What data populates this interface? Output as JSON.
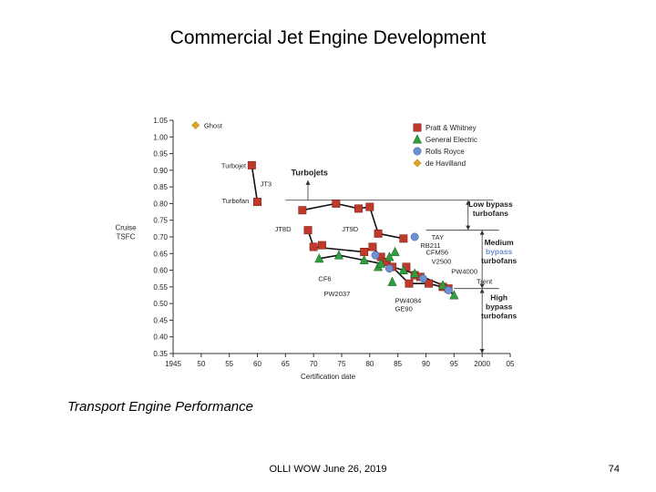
{
  "slide": {
    "title": "Commercial Jet Engine Development",
    "caption": "Transport Engine Performance",
    "footer": "OLLI WOW June 26, 2019",
    "page_number": "74"
  },
  "colors": {
    "pratt_whitney": "#c0392b",
    "general_electric": "#2e9e3f",
    "rolls_royce": "#6f8fd0",
    "de_havilland": "#e0a526"
  },
  "chart_data": {
    "type": "scatter",
    "xlabel": "Certification date",
    "ylabel": [
      "Cruise",
      "TSFC"
    ],
    "xlim": [
      1945,
      2005
    ],
    "ylim": [
      0.35,
      1.05
    ],
    "xticks": [
      1945,
      1950,
      1955,
      1960,
      1965,
      1970,
      1975,
      1980,
      1985,
      1990,
      1995,
      2000,
      2005
    ],
    "xtick_labels": [
      "1945",
      "50",
      "55",
      "60",
      "65",
      "70",
      "75",
      "80",
      "85",
      "90",
      "95",
      "2000",
      "05"
    ],
    "yticks": [
      0.35,
      0.4,
      0.45,
      0.5,
      0.55,
      0.6,
      0.65,
      0.7,
      0.75,
      0.8,
      0.85,
      0.9,
      0.95,
      1.0,
      1.05
    ],
    "ytick_labels": [
      "0.35",
      "0.40",
      "0.45",
      "0.50",
      "0.55",
      "0.60",
      "0.65",
      "0.70",
      "0.75",
      "0.80",
      "0.85",
      "0.90",
      "0.95",
      "1.00",
      "1.05"
    ],
    "legend_position": "top-right",
    "series": [
      {
        "name": "Pratt & Whitney",
        "marker": "square",
        "color": "#c0392b",
        "points": [
          [
            1959,
            0.915
          ],
          [
            1960,
            0.805
          ],
          [
            1968,
            0.78
          ],
          [
            1969,
            0.72
          ],
          [
            1970,
            0.67
          ],
          [
            1971.5,
            0.675
          ],
          [
            1974,
            0.8
          ],
          [
            1978,
            0.785
          ],
          [
            1979,
            0.655
          ],
          [
            1980,
            0.79
          ],
          [
            1980.5,
            0.67
          ],
          [
            1981.5,
            0.71
          ],
          [
            1982,
            0.64
          ],
          [
            1983,
            0.625
          ],
          [
            1984,
            0.61
          ],
          [
            1986,
            0.695
          ],
          [
            1986.5,
            0.61
          ],
          [
            1987,
            0.56
          ],
          [
            1988,
            0.585
          ],
          [
            1989,
            0.58
          ],
          [
            1990.5,
            0.56
          ],
          [
            1993,
            0.55
          ],
          [
            1994,
            0.545
          ]
        ],
        "connected_groups": [
          [
            [
              1959,
              0.915
            ],
            [
              1960,
              0.805
            ]
          ],
          [
            [
              1968,
              0.78
            ],
            [
              1974,
              0.8
            ],
            [
              1978,
              0.785
            ],
            [
              1980,
              0.79
            ],
            [
              1981.5,
              0.71
            ],
            [
              1986,
              0.695
            ]
          ],
          [
            [
              1969,
              0.72
            ],
            [
              1970,
              0.67
            ],
            [
              1979,
              0.655
            ],
            [
              1980.5,
              0.67
            ],
            [
              1982,
              0.64
            ],
            [
              1984,
              0.61
            ],
            [
              1987,
              0.56
            ],
            [
              1990.5,
              0.56
            ],
            [
              1994,
              0.545
            ]
          ]
        ]
      },
      {
        "name": "General Electric",
        "marker": "triangle",
        "color": "#2e9e3f",
        "points": [
          [
            1971,
            0.635
          ],
          [
            1974.5,
            0.645
          ],
          [
            1979,
            0.63
          ],
          [
            1981.5,
            0.61
          ],
          [
            1982,
            0.62
          ],
          [
            1983.5,
            0.64
          ],
          [
            1984,
            0.565
          ],
          [
            1984.5,
            0.655
          ],
          [
            1986,
            0.6
          ],
          [
            1988,
            0.59
          ],
          [
            1993,
            0.555
          ],
          [
            1995,
            0.525
          ]
        ],
        "connected_groups": [
          [
            [
              1971,
              0.635
            ],
            [
              1974.5,
              0.645
            ],
            [
              1979,
              0.63
            ],
            [
              1982,
              0.62
            ],
            [
              1986,
              0.6
            ],
            [
              1988,
              0.59
            ],
            [
              1993,
              0.555
            ],
            [
              1995,
              0.525
            ]
          ]
        ]
      },
      {
        "name": "Rolls Royce",
        "marker": "circle",
        "color": "#6f8fd0",
        "points": [
          [
            1981,
            0.645
          ],
          [
            1983.5,
            0.605
          ],
          [
            1988,
            0.7
          ],
          [
            1989.5,
            0.575
          ],
          [
            1994,
            0.54
          ]
        ],
        "connected_groups": []
      },
      {
        "name": "de Havilland",
        "marker": "diamond",
        "color": "#e0a526",
        "points": [
          [
            1949,
            1.035
          ]
        ],
        "connected_groups": []
      }
    ],
    "point_labels": [
      {
        "text": "Ghost",
        "x": 1950.5,
        "y": 1.035,
        "anchor": "start"
      },
      {
        "text": "Turbojet",
        "x": 1958,
        "y": 0.915,
        "anchor": "end"
      },
      {
        "text": "JT3",
        "x": 1960.5,
        "y": 0.86,
        "anchor": "start"
      },
      {
        "text": "Turbofan",
        "x": 1958.5,
        "y": 0.81,
        "anchor": "end"
      },
      {
        "text": "JT8D",
        "x": 1966,
        "y": 0.725,
        "anchor": "end"
      },
      {
        "text": "JT9D",
        "x": 1976.5,
        "y": 0.725,
        "anchor": "middle"
      },
      {
        "text": "TAY",
        "x": 1991,
        "y": 0.7,
        "anchor": "start"
      },
      {
        "text": "RB211",
        "x": 1989,
        "y": 0.675,
        "anchor": "start"
      },
      {
        "text": "CFM56",
        "x": 1990,
        "y": 0.655,
        "anchor": "start"
      },
      {
        "text": "V2500",
        "x": 1991,
        "y": 0.628,
        "anchor": "start"
      },
      {
        "text": "PW4000",
        "x": 1994.5,
        "y": 0.598,
        "anchor": "start"
      },
      {
        "text": "Trent",
        "x": 1999,
        "y": 0.567,
        "anchor": "start"
      },
      {
        "text": "CF6",
        "x": 1972,
        "y": 0.575,
        "anchor": "middle"
      },
      {
        "text": "PW2037",
        "x": 1976.5,
        "y": 0.53,
        "anchor": "end"
      },
      {
        "text": "PW4084",
        "x": 1984.5,
        "y": 0.51,
        "anchor": "start"
      },
      {
        "text": "GE90",
        "x": 1984.5,
        "y": 0.485,
        "anchor": "start"
      }
    ],
    "region_labels": [
      {
        "text": "Turbojets",
        "bold": true
      },
      {
        "lines": [
          "Low bypass",
          "turbofans"
        ],
        "bold": true
      },
      {
        "lines": [
          "Medium",
          "bypass",
          "turbofans"
        ],
        "bold": true,
        "accent_line": 1
      },
      {
        "lines": [
          "High",
          "bypass",
          "turbofans"
        ],
        "bold": true
      }
    ],
    "boundaries": [
      {
        "y": 0.81,
        "from_x": 1965,
        "to_x": 2002
      },
      {
        "y": 0.72,
        "from_x": 1990,
        "to_x": 2003
      },
      {
        "y": 0.545,
        "from_x": 1995,
        "to_x": 2003
      }
    ]
  }
}
